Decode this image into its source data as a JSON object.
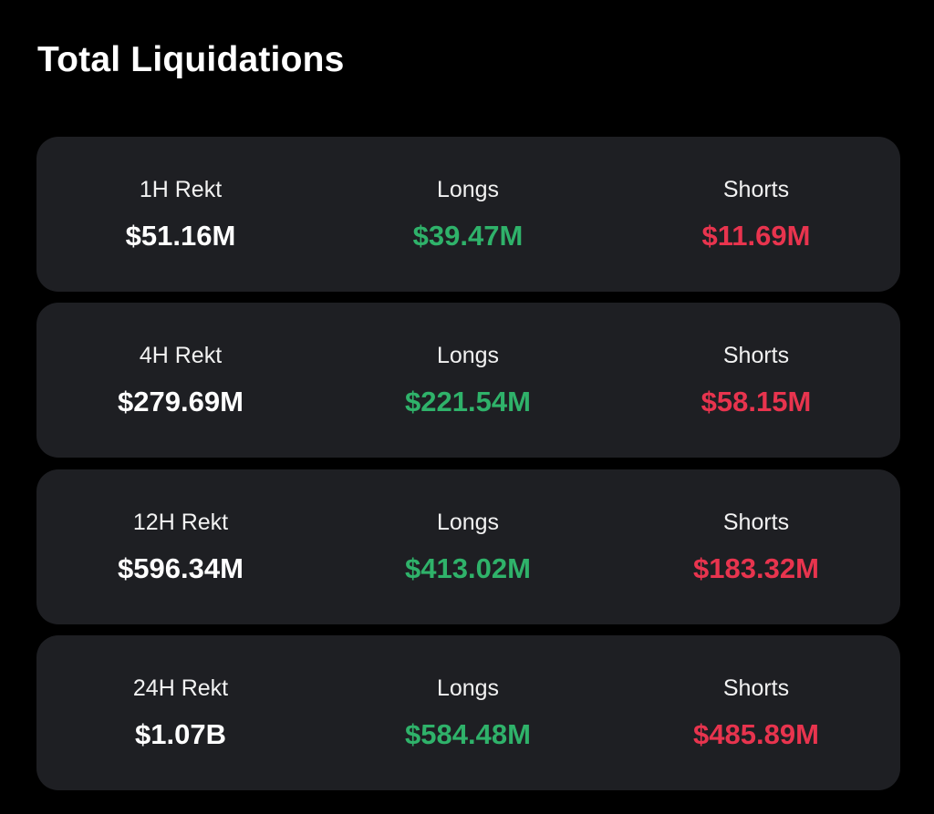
{
  "title": "Total Liquidations",
  "colors": {
    "total": "#ffffff",
    "longs": "#2fb26a",
    "shorts": "#e8344e",
    "card": "#1e1f23"
  },
  "rows": [
    {
      "period_label": "1H Rekt",
      "total": "$51.16M",
      "longs_label": "Longs",
      "longs": "$39.47M",
      "shorts_label": "Shorts",
      "shorts": "$11.69M"
    },
    {
      "period_label": "4H Rekt",
      "total": "$279.69M",
      "longs_label": "Longs",
      "longs": "$221.54M",
      "shorts_label": "Shorts",
      "shorts": "$58.15M"
    },
    {
      "period_label": "12H Rekt",
      "total": "$596.34M",
      "longs_label": "Longs",
      "longs": "$413.02M",
      "shorts_label": "Shorts",
      "shorts": "$183.32M"
    },
    {
      "period_label": "24H Rekt",
      "total": "$1.07B",
      "longs_label": "Longs",
      "longs": "$584.48M",
      "shorts_label": "Shorts",
      "shorts": "$485.89M"
    }
  ]
}
